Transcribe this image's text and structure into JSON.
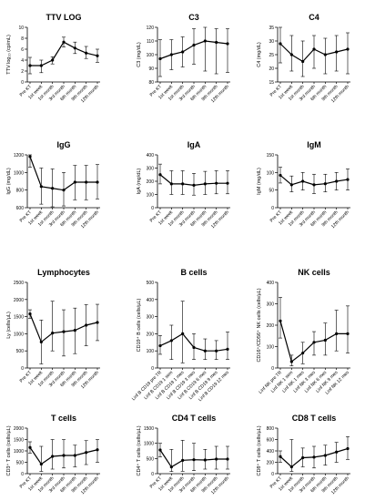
{
  "figure": {
    "background": "#ffffff",
    "line_color": "#000000"
  },
  "chart_data": [
    {
      "type": "line",
      "title": "TTV LOG",
      "ylabel": "TTV log₁₀ (cp/mL)",
      "categories": [
        "Pre KT",
        "1st week",
        "1st month",
        "3rd month",
        "6th month",
        "9th month",
        "12th month"
      ],
      "values": [
        3.0,
        3.0,
        4.0,
        7.3,
        6.2,
        5.3,
        4.8
      ],
      "err_low": [
        1.5,
        1.7,
        3.3,
        6.4,
        5.2,
        4.3,
        3.6
      ],
      "err_high": [
        4.5,
        4.0,
        4.6,
        8.2,
        7.3,
        6.5,
        6.0
      ],
      "ylim": [
        0,
        10
      ],
      "yticks": [
        "0",
        "2",
        "4",
        "6",
        "8",
        "10"
      ]
    },
    {
      "type": "line",
      "title": "C3",
      "ylabel": "C3 (mg/dL)",
      "categories": [
        "Pre KT",
        "1st week",
        "1st month",
        "3rd month",
        "6th month",
        "9th month",
        "12th month"
      ],
      "values": [
        97,
        100,
        102,
        107,
        110,
        109,
        108
      ],
      "err_low": [
        84,
        89,
        91,
        93,
        88,
        86,
        87
      ],
      "err_high": [
        111,
        111,
        113,
        119,
        121,
        119,
        119
      ],
      "ylim": [
        80,
        120
      ],
      "yticks": [
        "80",
        "90",
        "100",
        "110",
        "120"
      ]
    },
    {
      "type": "line",
      "title": "C4",
      "ylabel": "C4 (mg/dL)",
      "categories": [
        "Pre KT",
        "1st week",
        "1st month",
        "3rd month",
        "6th month",
        "9th month",
        "12th month"
      ],
      "values": [
        29,
        25,
        22.5,
        27,
        25,
        26,
        27
      ],
      "err_low": [
        22,
        19,
        17,
        20,
        18,
        19,
        18
      ],
      "err_high": [
        35,
        32,
        30,
        32,
        31,
        32,
        33
      ],
      "ylim": [
        15,
        35
      ],
      "yticks": [
        "15",
        "20",
        "25",
        "30",
        "35"
      ]
    },
    {
      "type": "line",
      "title": "IgG",
      "ylabel": "IgG (mg/dL)",
      "categories": [
        "Pre KT",
        "1st week",
        "1st month",
        "3rd month",
        "6th month",
        "9th month",
        "12th month"
      ],
      "values": [
        1180,
        840,
        820,
        800,
        890,
        890,
        890
      ],
      "err_low": [
        1060,
        640,
        610,
        620,
        690,
        690,
        700
      ],
      "err_high": [
        1280,
        1050,
        1040,
        1000,
        1080,
        1080,
        1090
      ],
      "ylim": [
        600,
        1200
      ],
      "yticks": [
        "600",
        "800",
        "1000",
        "1200"
      ]
    },
    {
      "type": "line",
      "title": "IgA",
      "ylabel": "IgA (mg/dL)",
      "categories": [
        "Pre KT",
        "1st week",
        "1st month",
        "3rd month",
        "6th month",
        "9th month",
        "12th month"
      ],
      "values": [
        250,
        180,
        180,
        170,
        180,
        185,
        185
      ],
      "err_low": [
        180,
        100,
        100,
        95,
        100,
        105,
        105
      ],
      "err_high": [
        330,
        280,
        280,
        260,
        275,
        280,
        280
      ],
      "ylim": [
        0,
        400
      ],
      "yticks": [
        "0",
        "100",
        "200",
        "300",
        "400"
      ]
    },
    {
      "type": "line",
      "title": "IgM",
      "ylabel": "IgM (mg/dL)",
      "categories": [
        "Pre KT",
        "1st week",
        "1st month",
        "3rd month",
        "6th month",
        "9th month",
        "12th month"
      ],
      "values": [
        92,
        65,
        75,
        65,
        68,
        75,
        80
      ],
      "err_low": [
        70,
        45,
        50,
        40,
        45,
        50,
        50
      ],
      "err_high": [
        115,
        90,
        100,
        95,
        95,
        100,
        110
      ],
      "ylim": [
        0,
        150
      ],
      "yticks": [
        "0",
        "50",
        "100",
        "150"
      ]
    },
    {
      "type": "line",
      "title": "Lymphocytes",
      "ylabel": "Ly (cells/µL)",
      "categories": [
        "Pre KT",
        "1st week",
        "1st month",
        "3rd month",
        "6th month",
        "9th month",
        "12th month"
      ],
      "values": [
        1580,
        760,
        1020,
        1060,
        1100,
        1250,
        1330
      ],
      "err_low": [
        1450,
        120,
        500,
        350,
        420,
        650,
        800
      ],
      "err_high": [
        1700,
        1400,
        1950,
        1700,
        1750,
        1850,
        1860
      ],
      "ylim": [
        0,
        2500
      ],
      "yticks": [
        "0",
        "500",
        "1000",
        "1500",
        "2000",
        "2500"
      ]
    },
    {
      "type": "line",
      "title": "B cells",
      "ylabel": "CD19⁺ B cells (cells/µL)",
      "categories": [
        "Linf B CD19 pre TR",
        "Linf B CD19 1 sem",
        "Linf B CD19 1 mes",
        "Linf B CD19 3 mes",
        "Linf B CD19 6 mes",
        "Linf B CD19 9 mes",
        "Linf B CD19 12 mes"
      ],
      "values": [
        130,
        160,
        200,
        120,
        100,
        100,
        110
      ],
      "err_low": [
        80,
        50,
        30,
        50,
        50,
        50,
        50
      ],
      "err_high": [
        190,
        250,
        390,
        200,
        170,
        160,
        210
      ],
      "ylim": [
        0,
        500
      ],
      "yticks": [
        "0",
        "100",
        "200",
        "300",
        "400",
        "500"
      ]
    },
    {
      "type": "line",
      "title": "NK cells",
      "ylabel": "CD16⁺/CD56⁺ NK cells (cells/µL)",
      "categories": [
        "Linf NK pre TR",
        "Linf NK 1 sem",
        "Linf NK 1 mes",
        "Linf NK 3 mes",
        "Linf NK 6 mes",
        "Linf NK 9 mes",
        "Linf NK 12 mes"
      ],
      "values": [
        220,
        30,
        70,
        120,
        130,
        160,
        160
      ],
      "err_low": [
        140,
        10,
        20,
        60,
        60,
        80,
        70
      ],
      "err_high": [
        330,
        60,
        120,
        170,
        210,
        270,
        290
      ],
      "ylim": [
        0,
        400
      ],
      "yticks": [
        "0",
        "100",
        "200",
        "300",
        "400"
      ]
    },
    {
      "type": "line",
      "title": "T cells",
      "ylabel": "CD3⁺ T cells (cells/µL)",
      "categories": [
        "Pre KT",
        "1st week",
        "1st month",
        "3rd month",
        "6th month",
        "9th month",
        "12th month"
      ],
      "values": [
        1150,
        420,
        760,
        800,
        800,
        930,
        1050
      ],
      "err_low": [
        900,
        100,
        200,
        250,
        300,
        400,
        500
      ],
      "err_high": [
        1400,
        1200,
        1500,
        1500,
        1250,
        1450,
        1500
      ],
      "ylim": [
        0,
        2000
      ],
      "yticks": [
        "0",
        "500",
        "1000",
        "1500",
        "2000"
      ]
    },
    {
      "type": "line",
      "title": "CD4 T cells",
      "ylabel": "CD4⁺ T cells (cells/µL)",
      "categories": [
        "Pre KT",
        "1st week",
        "1st month",
        "3rd month",
        "6th month",
        "9th month",
        "12th month"
      ],
      "values": [
        780,
        220,
        440,
        460,
        450,
        480,
        480
      ],
      "err_low": [
        550,
        70,
        80,
        100,
        150,
        150,
        150
      ],
      "err_high": [
        1000,
        800,
        1100,
        1000,
        800,
        900,
        900
      ],
      "ylim": [
        0,
        1500
      ],
      "yticks": [
        "0",
        "500",
        "1000",
        "1500"
      ]
    },
    {
      "type": "line",
      "title": "CD8 T cells",
      "ylabel": "CD8⁺ T cells (cells/µL)",
      "categories": [
        "Pre KT",
        "1st week",
        "1st month",
        "3rd month",
        "6th month",
        "9th month",
        "12th month"
      ],
      "values": [
        300,
        120,
        280,
        290,
        320,
        380,
        440
      ],
      "err_low": [
        200,
        40,
        120,
        100,
        150,
        200,
        250
      ],
      "err_high": [
        400,
        600,
        450,
        480,
        500,
        550,
        650
      ],
      "ylim": [
        0,
        800
      ],
      "yticks": [
        "0",
        "200",
        "400",
        "600",
        "800"
      ]
    }
  ]
}
